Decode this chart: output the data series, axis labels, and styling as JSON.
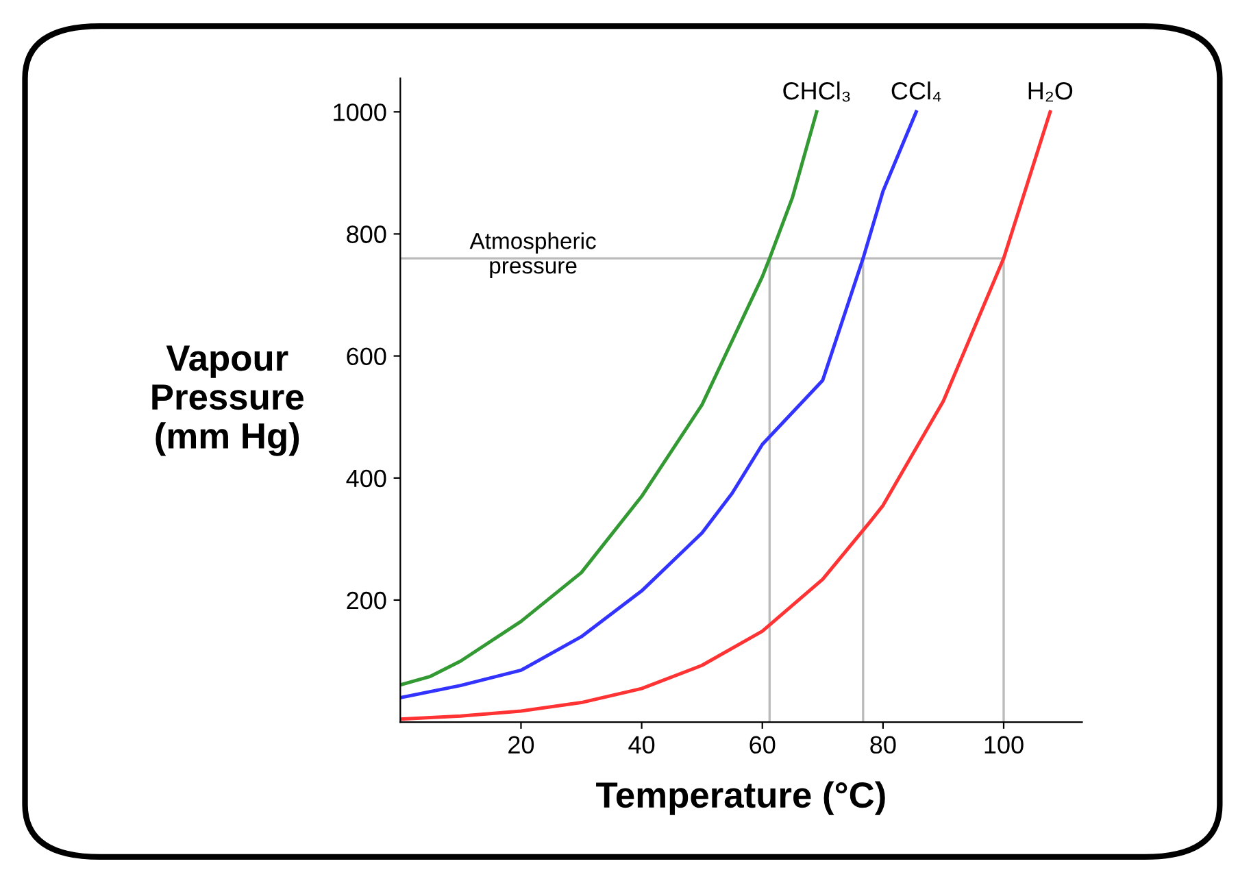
{
  "chart_data": {
    "type": "line",
    "xlabel": "Temperature (°C)",
    "ylabel": "Vapour\nPressure\n(mm Hg)",
    "xlim": [
      0,
      113
    ],
    "ylim": [
      0,
      1055
    ],
    "xticks": [
      20,
      40,
      60,
      80,
      100
    ],
    "yticks": [
      200,
      400,
      600,
      800,
      1000
    ],
    "grid": false,
    "legend": false,
    "marker": "none",
    "line_style": "solid",
    "series": [
      {
        "name": "CHCl₃",
        "color": "#339933",
        "x": [
          0,
          5,
          10,
          20,
          30,
          40,
          50,
          60,
          61.2,
          65,
          69
        ],
        "values": [
          61,
          75,
          100,
          165,
          245,
          370,
          520,
          730,
          760,
          860,
          1000
        ]
      },
      {
        "name": "CCl₄",
        "color": "#3333ff",
        "x": [
          0,
          10,
          20,
          30,
          40,
          50,
          55,
          60,
          70,
          76.7,
          80,
          85.5
        ],
        "values": [
          40,
          60,
          85,
          140,
          215,
          310,
          375,
          455,
          560,
          760,
          870,
          1000
        ]
      },
      {
        "name": "H₂O",
        "color": "#ff3333",
        "x": [
          0,
          10,
          20,
          30,
          40,
          50,
          60,
          70,
          78,
          80,
          90,
          100,
          107.7
        ],
        "values": [
          5,
          10,
          18,
          32,
          55,
          93,
          149,
          234,
          330,
          355,
          526,
          760,
          1000
        ]
      }
    ],
    "ref_lines": [
      {
        "axis": "y",
        "value": 760,
        "label": "Atmospheric\npressure",
        "color": "#bbbbbb"
      },
      {
        "axis": "x",
        "value": 61.2,
        "color": "#bbbbbb"
      },
      {
        "axis": "x",
        "value": 76.7,
        "color": "#bbbbbb"
      },
      {
        "axis": "x",
        "value": 100,
        "color": "#bbbbbb"
      }
    ]
  }
}
